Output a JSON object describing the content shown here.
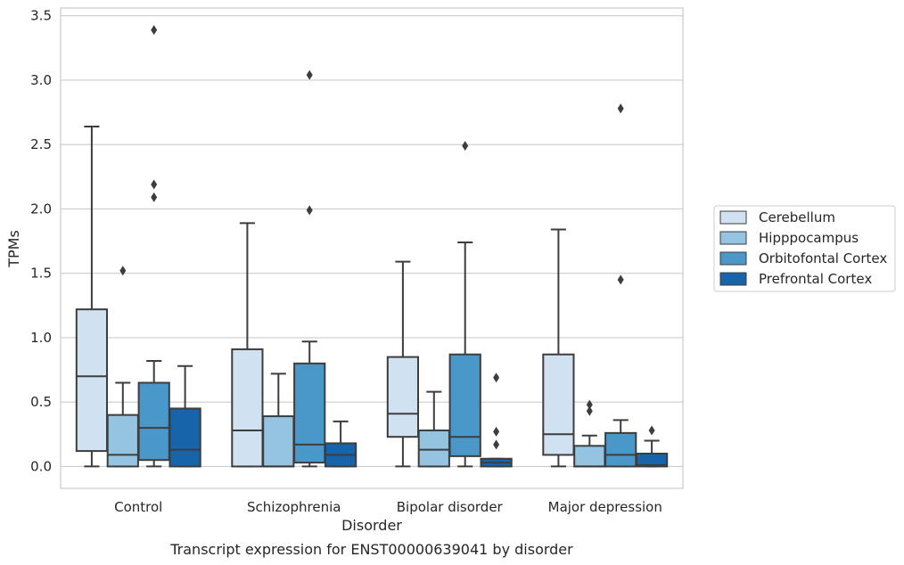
{
  "chart_data": {
    "type": "box",
    "caption": "Transcript expression for ENST00000639041 by disorder",
    "xlabel": "Disorder",
    "ylabel": "TPMs",
    "ylim": [
      -0.17,
      3.56
    ],
    "yticks": [
      0.0,
      0.5,
      1.0,
      1.5,
      2.0,
      2.5,
      3.0,
      3.5
    ],
    "ytick_labels": [
      "0.0",
      "0.5",
      "1.0",
      "1.5",
      "2.0",
      "2.5",
      "3.0",
      "3.5"
    ],
    "grid": true,
    "legend_position": "right",
    "categories": [
      "Control",
      "Schizophrenia",
      "Bipolar disorder",
      "Major depression"
    ],
    "series": [
      {
        "name": "Cerebellum",
        "color": "#d0e1f2",
        "boxes": [
          {
            "whisker_low": 0.0,
            "q1": 0.12,
            "median": 0.7,
            "q3": 1.22,
            "whisker_high": 2.64,
            "outliers": []
          },
          {
            "whisker_low": 0.0,
            "q1": 0.0,
            "median": 0.28,
            "q3": 0.91,
            "whisker_high": 1.89,
            "outliers": []
          },
          {
            "whisker_low": 0.0,
            "q1": 0.23,
            "median": 0.41,
            "q3": 0.85,
            "whisker_high": 1.59,
            "outliers": []
          },
          {
            "whisker_low": 0.0,
            "q1": 0.09,
            "median": 0.25,
            "q3": 0.87,
            "whisker_high": 1.84,
            "outliers": []
          }
        ]
      },
      {
        "name": "Hipppocampus",
        "color": "#94c4df",
        "boxes": [
          {
            "whisker_low": 0.0,
            "q1": 0.0,
            "median": 0.09,
            "q3": 0.4,
            "whisker_high": 0.65,
            "outliers": [
              1.52
            ]
          },
          {
            "whisker_low": 0.0,
            "q1": 0.0,
            "median": 0.0,
            "q3": 0.39,
            "whisker_high": 0.72,
            "outliers": []
          },
          {
            "whisker_low": 0.0,
            "q1": 0.0,
            "median": 0.13,
            "q3": 0.28,
            "whisker_high": 0.58,
            "outliers": []
          },
          {
            "whisker_low": 0.0,
            "q1": 0.0,
            "median": 0.0,
            "q3": 0.16,
            "whisker_high": 0.24,
            "outliers": [
              0.43,
              0.48
            ]
          }
        ]
      },
      {
        "name": "Orbitofontal Cortex",
        "color": "#4a98c9",
        "boxes": [
          {
            "whisker_low": 0.0,
            "q1": 0.05,
            "median": 0.3,
            "q3": 0.65,
            "whisker_high": 0.82,
            "outliers": [
              2.09,
              2.19,
              3.39
            ]
          },
          {
            "whisker_low": 0.0,
            "q1": 0.03,
            "median": 0.17,
            "q3": 0.8,
            "whisker_high": 0.97,
            "outliers": [
              1.99,
              3.04
            ]
          },
          {
            "whisker_low": 0.0,
            "q1": 0.08,
            "median": 0.23,
            "q3": 0.87,
            "whisker_high": 1.74,
            "outliers": [
              2.49
            ]
          },
          {
            "whisker_low": 0.0,
            "q1": 0.0,
            "median": 0.09,
            "q3": 0.26,
            "whisker_high": 0.36,
            "outliers": [
              1.45,
              2.78
            ]
          }
        ]
      },
      {
        "name": "Prefrontal Cortex",
        "color": "#1764ab",
        "boxes": [
          {
            "whisker_low": 0.0,
            "q1": 0.0,
            "median": 0.13,
            "q3": 0.45,
            "whisker_high": 0.78,
            "outliers": []
          },
          {
            "whisker_low": 0.0,
            "q1": 0.0,
            "median": 0.09,
            "q3": 0.18,
            "whisker_high": 0.35,
            "outliers": []
          },
          {
            "whisker_low": 0.0,
            "q1": 0.0,
            "median": 0.03,
            "q3": 0.06,
            "whisker_high": 0.06,
            "outliers": [
              0.17,
              0.27,
              0.69
            ]
          },
          {
            "whisker_low": 0.0,
            "q1": 0.0,
            "median": 0.01,
            "q3": 0.1,
            "whisker_high": 0.2,
            "outliers": [
              0.28
            ]
          }
        ]
      }
    ]
  }
}
